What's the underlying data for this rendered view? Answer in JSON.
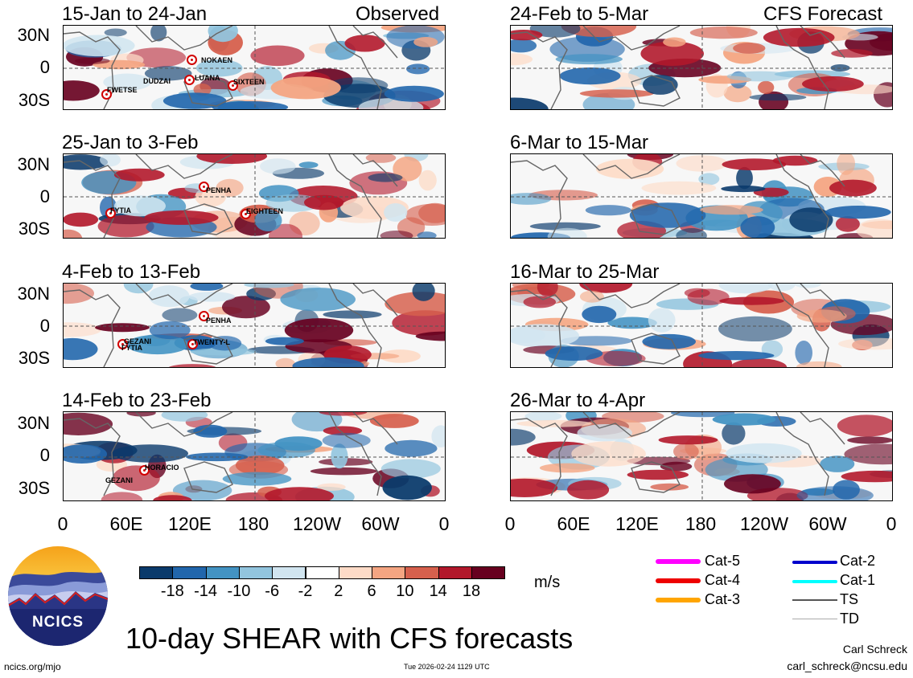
{
  "panels_left": [
    {
      "period": "15-Jan to 24-Jan",
      "tag": "Observed",
      "storms": [
        {
          "name": "NOKAEN"
        },
        {
          "name": "DUDZAI"
        },
        {
          "name": "LUANA"
        },
        {
          "name": "SIXTEEN"
        },
        {
          "name": "FWETSE"
        }
      ]
    },
    {
      "period": "25-Jan to 3-Feb",
      "tag": "",
      "storms": [
        {
          "name": "PENHA"
        },
        {
          "name": "FYTIA"
        },
        {
          "name": "EIGHTEEN"
        }
      ]
    },
    {
      "period": "4-Feb to 13-Feb",
      "tag": "",
      "storms": [
        {
          "name": "PENHA"
        },
        {
          "name": "GEZANI"
        },
        {
          "name": "FYTIA"
        },
        {
          "name": "TWENTY-L"
        }
      ]
    },
    {
      "period": "14-Feb to 23-Feb",
      "tag": "",
      "storms": [
        {
          "name": "HORACIO"
        },
        {
          "name": "GEZANI"
        }
      ]
    }
  ],
  "panels_right": [
    {
      "period": "24-Feb to 5-Mar",
      "tag": "CFS Forecast"
    },
    {
      "period": "6-Mar to 15-Mar",
      "tag": ""
    },
    {
      "period": "16-Mar to 25-Mar",
      "tag": ""
    },
    {
      "period": "26-Mar to 4-Apr",
      "tag": ""
    }
  ],
  "lat_labels": [
    "30N",
    "0",
    "30S"
  ],
  "lon_labels": [
    "0",
    "60E",
    "120E",
    "180",
    "120W",
    "60W",
    "0"
  ],
  "colorbar": {
    "colors": [
      "#0a3a6b",
      "#2166ac",
      "#4393c3",
      "#92c5de",
      "#d1e5f0",
      "#ffffff",
      "#fddbc7",
      "#f4a582",
      "#d6604d",
      "#b2182b",
      "#67001f"
    ],
    "labels": [
      "-18",
      "-14",
      "-10",
      "-6",
      "-2",
      "2",
      "6",
      "10",
      "14",
      "18"
    ],
    "units": "m/s"
  },
  "storm_legend": [
    {
      "label": "Cat-5",
      "color": "#ff00ff"
    },
    {
      "label": "Cat-4",
      "color": "#ee0000"
    },
    {
      "label": "Cat-3",
      "color": "#ffa500"
    },
    {
      "label": "Cat-2",
      "color": "#0000cc"
    },
    {
      "label": "Cat-1",
      "color": "#00ffff"
    },
    {
      "label": "TS",
      "color": "#555555"
    },
    {
      "label": "TD",
      "color": "#aaaaaa"
    }
  ],
  "logo_text": "NCICS",
  "main_title": "10-day SHEAR with CFS forecasts",
  "site": "ncics.org/mjo",
  "timestamp": "Tue 2026-02-24 1129 UTC",
  "author": "Carl Schreck",
  "email": "carl_schreck@ncsu.edu"
}
